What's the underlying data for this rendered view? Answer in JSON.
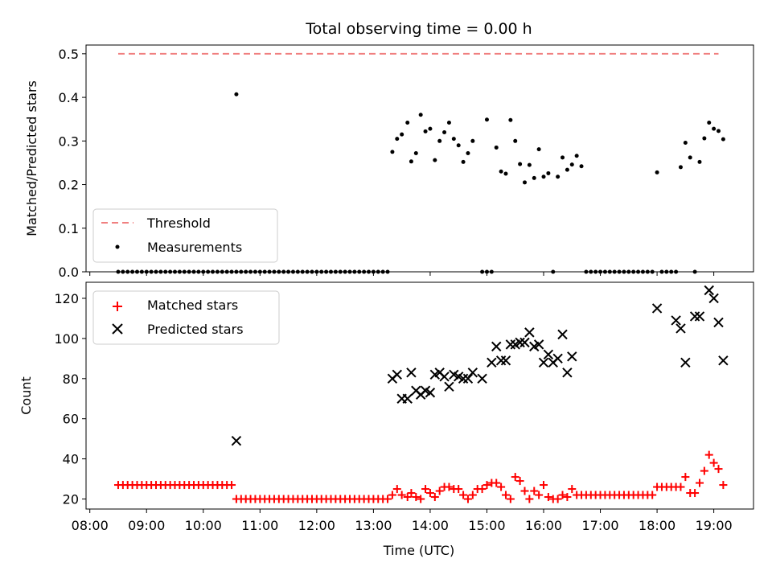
{
  "title": "Total observing time = 0.00 h",
  "xlabel": "Time (UTC)",
  "x_ticks": [
    "08:00",
    "09:00",
    "10:00",
    "11:00",
    "12:00",
    "13:00",
    "14:00",
    "15:00",
    "16:00",
    "17:00",
    "18:00",
    "19:00"
  ],
  "chart_data": [
    {
      "type": "scatter",
      "panel": "top",
      "ylabel": "Matched/Predicted stars",
      "ylim": [
        0,
        0.52
      ],
      "xlim": [
        "07:56",
        "19:42"
      ],
      "yticks": [
        "0.0",
        "0.1",
        "0.2",
        "0.3",
        "0.4",
        "0.5"
      ],
      "legend_position": "lower-left",
      "colors": {
        "threshold": "#f08080",
        "measurements": "#000000"
      },
      "threshold": {
        "name": "Threshold",
        "value": 0.5,
        "x_range": [
          "08:30",
          "19:05"
        ]
      },
      "measurements_name": "Measurements",
      "zeros_x": [
        "08:30",
        "08:35",
        "08:40",
        "08:45",
        "08:50",
        "08:55",
        "09:00",
        "09:05",
        "09:10",
        "09:15",
        "09:20",
        "09:25",
        "09:30",
        "09:35",
        "09:40",
        "09:45",
        "09:50",
        "09:55",
        "10:00",
        "10:05",
        "10:10",
        "10:15",
        "10:20",
        "10:25",
        "10:30",
        "10:35",
        "10:40",
        "10:45",
        "10:50",
        "10:55",
        "11:00",
        "11:05",
        "11:10",
        "11:15",
        "11:20",
        "11:25",
        "11:30",
        "11:35",
        "11:40",
        "11:45",
        "11:50",
        "11:55",
        "12:00",
        "12:05",
        "12:10",
        "12:15",
        "12:20",
        "12:25",
        "12:30",
        "12:35",
        "12:40",
        "12:45",
        "12:50",
        "12:55",
        "13:00",
        "13:05",
        "13:10",
        "13:15",
        "14:55",
        "15:00",
        "15:05",
        "16:10",
        "16:45",
        "16:50",
        "16:55",
        "17:00",
        "17:05",
        "17:10",
        "17:15",
        "17:20",
        "17:25",
        "17:30",
        "17:35",
        "17:40",
        "17:45",
        "17:50",
        "17:55",
        "18:05",
        "18:10",
        "18:15",
        "18:20",
        "18:40"
      ],
      "points": [
        [
          "10:35",
          0.407
        ],
        [
          "13:20",
          0.275
        ],
        [
          "13:25",
          0.305
        ],
        [
          "13:30",
          0.315
        ],
        [
          "13:36",
          0.342
        ],
        [
          "13:40",
          0.253
        ],
        [
          "13:45",
          0.272
        ],
        [
          "13:50",
          0.36
        ],
        [
          "13:55",
          0.322
        ],
        [
          "14:00",
          0.328
        ],
        [
          "14:05",
          0.256
        ],
        [
          "14:10",
          0.3
        ],
        [
          "14:15",
          0.32
        ],
        [
          "14:20",
          0.342
        ],
        [
          "14:25",
          0.305
        ],
        [
          "14:30",
          0.29
        ],
        [
          "14:35",
          0.252
        ],
        [
          "14:40",
          0.272
        ],
        [
          "14:45",
          0.3
        ],
        [
          "15:00",
          0.349
        ],
        [
          "15:10",
          0.285
        ],
        [
          "15:15",
          0.23
        ],
        [
          "15:20",
          0.225
        ],
        [
          "15:25",
          0.348
        ],
        [
          "15:30",
          0.3
        ],
        [
          "15:35",
          0.247
        ],
        [
          "15:40",
          0.205
        ],
        [
          "15:45",
          0.245
        ],
        [
          "15:50",
          0.215
        ],
        [
          "15:55",
          0.281
        ],
        [
          "16:00",
          0.218
        ],
        [
          "16:05",
          0.226
        ],
        [
          "16:15",
          0.218
        ],
        [
          "16:20",
          0.262
        ],
        [
          "16:25",
          0.234
        ],
        [
          "16:30",
          0.246
        ],
        [
          "16:35",
          0.266
        ],
        [
          "16:40",
          0.242
        ],
        [
          "18:00",
          0.228
        ],
        [
          "18:25",
          0.24
        ],
        [
          "18:30",
          0.296
        ],
        [
          "18:35",
          0.262
        ],
        [
          "18:45",
          0.252
        ],
        [
          "18:50",
          0.306
        ],
        [
          "18:55",
          0.342
        ],
        [
          "19:00",
          0.328
        ],
        [
          "19:05",
          0.323
        ],
        [
          "19:10",
          0.304
        ]
      ]
    },
    {
      "type": "scatter",
      "panel": "bottom",
      "ylabel": "Count",
      "ylim": [
        15,
        128
      ],
      "xlim": [
        "07:56",
        "19:42"
      ],
      "yticks": [
        "20",
        "40",
        "60",
        "80",
        "100",
        "120"
      ],
      "legend_position": "upper-left",
      "colors": {
        "matched": "#ff0000",
        "predicted": "#000000"
      },
      "series": [
        {
          "name": "Matched stars",
          "marker": "plus",
          "points": [
            [
              "08:30",
              27
            ],
            [
              "08:35",
              27
            ],
            [
              "08:40",
              27
            ],
            [
              "08:45",
              27
            ],
            [
              "08:50",
              27
            ],
            [
              "08:55",
              27
            ],
            [
              "09:00",
              27
            ],
            [
              "09:05",
              27
            ],
            [
              "09:10",
              27
            ],
            [
              "09:15",
              27
            ],
            [
              "09:20",
              27
            ],
            [
              "09:25",
              27
            ],
            [
              "09:30",
              27
            ],
            [
              "09:35",
              27
            ],
            [
              "09:40",
              27
            ],
            [
              "09:45",
              27
            ],
            [
              "09:50",
              27
            ],
            [
              "09:55",
              27
            ],
            [
              "10:00",
              27
            ],
            [
              "10:05",
              27
            ],
            [
              "10:10",
              27
            ],
            [
              "10:15",
              27
            ],
            [
              "10:20",
              27
            ],
            [
              "10:25",
              27
            ],
            [
              "10:30",
              27
            ],
            [
              "10:35",
              20
            ],
            [
              "10:40",
              20
            ],
            [
              "10:45",
              20
            ],
            [
              "10:50",
              20
            ],
            [
              "10:55",
              20
            ],
            [
              "11:00",
              20
            ],
            [
              "11:05",
              20
            ],
            [
              "11:10",
              20
            ],
            [
              "11:15",
              20
            ],
            [
              "11:20",
              20
            ],
            [
              "11:25",
              20
            ],
            [
              "11:30",
              20
            ],
            [
              "11:35",
              20
            ],
            [
              "11:40",
              20
            ],
            [
              "11:45",
              20
            ],
            [
              "11:50",
              20
            ],
            [
              "11:55",
              20
            ],
            [
              "12:00",
              20
            ],
            [
              "12:05",
              20
            ],
            [
              "12:10",
              20
            ],
            [
              "12:15",
              20
            ],
            [
              "12:20",
              20
            ],
            [
              "12:25",
              20
            ],
            [
              "12:30",
              20
            ],
            [
              "12:35",
              20
            ],
            [
              "12:40",
              20
            ],
            [
              "12:45",
              20
            ],
            [
              "12:50",
              20
            ],
            [
              "12:55",
              20
            ],
            [
              "13:00",
              20
            ],
            [
              "13:05",
              20
            ],
            [
              "13:10",
              20
            ],
            [
              "13:15",
              20
            ],
            [
              "13:20",
              22
            ],
            [
              "13:25",
              25
            ],
            [
              "13:30",
              22
            ],
            [
              "13:36",
              21
            ],
            [
              "13:40",
              23
            ],
            [
              "13:45",
              21
            ],
            [
              "13:50",
              20
            ],
            [
              "13:55",
              25
            ],
            [
              "14:00",
              23
            ],
            [
              "14:05",
              21
            ],
            [
              "14:10",
              24
            ],
            [
              "14:15",
              26
            ],
            [
              "14:20",
              26
            ],
            [
              "14:25",
              25
            ],
            [
              "14:30",
              25
            ],
            [
              "14:35",
              22
            ],
            [
              "14:40",
              20
            ],
            [
              "14:45",
              22
            ],
            [
              "14:50",
              25
            ],
            [
              "14:55",
              25
            ],
            [
              "15:00",
              27
            ],
            [
              "15:05",
              28
            ],
            [
              "15:10",
              28
            ],
            [
              "15:15",
              26
            ],
            [
              "15:20",
              22
            ],
            [
              "15:25",
              20
            ],
            [
              "15:30",
              31
            ],
            [
              "15:35",
              29
            ],
            [
              "15:40",
              24
            ],
            [
              "15:45",
              20
            ],
            [
              "15:50",
              24
            ],
            [
              "15:55",
              22
            ],
            [
              "16:00",
              27
            ],
            [
              "16:05",
              21
            ],
            [
              "16:10",
              20
            ],
            [
              "16:15",
              20
            ],
            [
              "16:20",
              22
            ],
            [
              "16:25",
              21
            ],
            [
              "16:30",
              25
            ],
            [
              "16:35",
              22
            ],
            [
              "16:40",
              22
            ],
            [
              "16:45",
              22
            ],
            [
              "16:50",
              22
            ],
            [
              "16:55",
              22
            ],
            [
              "17:00",
              22
            ],
            [
              "17:05",
              22
            ],
            [
              "17:10",
              22
            ],
            [
              "17:15",
              22
            ],
            [
              "17:20",
              22
            ],
            [
              "17:25",
              22
            ],
            [
              "17:30",
              22
            ],
            [
              "17:35",
              22
            ],
            [
              "17:40",
              22
            ],
            [
              "17:45",
              22
            ],
            [
              "17:50",
              22
            ],
            [
              "17:55",
              22
            ],
            [
              "18:00",
              26
            ],
            [
              "18:05",
              26
            ],
            [
              "18:10",
              26
            ],
            [
              "18:15",
              26
            ],
            [
              "18:20",
              26
            ],
            [
              "18:25",
              26
            ],
            [
              "18:30",
              31
            ],
            [
              "18:35",
              23
            ],
            [
              "18:40",
              23
            ],
            [
              "18:45",
              28
            ],
            [
              "18:50",
              34
            ],
            [
              "18:55",
              42
            ],
            [
              "19:00",
              38
            ],
            [
              "19:05",
              35
            ],
            [
              "19:10",
              27
            ]
          ]
        },
        {
          "name": "Predicted stars",
          "marker": "x",
          "points": [
            [
              "10:35",
              49
            ],
            [
              "13:20",
              80
            ],
            [
              "13:25",
              82
            ],
            [
              "13:30",
              70
            ],
            [
              "13:36",
              70
            ],
            [
              "13:40",
              83
            ],
            [
              "13:45",
              74
            ],
            [
              "13:50",
              72
            ],
            [
              "13:55",
              74
            ],
            [
              "14:00",
              73
            ],
            [
              "14:05",
              82
            ],
            [
              "14:10",
              83
            ],
            [
              "14:15",
              81
            ],
            [
              "14:20",
              76
            ],
            [
              "14:25",
              82
            ],
            [
              "14:30",
              81
            ],
            [
              "14:35",
              80
            ],
            [
              "14:40",
              80
            ],
            [
              "14:45",
              83
            ],
            [
              "14:55",
              80
            ],
            [
              "15:05",
              88
            ],
            [
              "15:10",
              96
            ],
            [
              "15:15",
              89
            ],
            [
              "15:20",
              89
            ],
            [
              "15:25",
              97
            ],
            [
              "15:30",
              97
            ],
            [
              "15:35",
              98
            ],
            [
              "15:40",
              98
            ],
            [
              "15:45",
              103
            ],
            [
              "15:50",
              96
            ],
            [
              "15:55",
              97
            ],
            [
              "16:00",
              88
            ],
            [
              "16:05",
              92
            ],
            [
              "16:10",
              88
            ],
            [
              "16:15",
              90
            ],
            [
              "16:20",
              102
            ],
            [
              "16:25",
              83
            ],
            [
              "16:30",
              91
            ],
            [
              "18:00",
              115
            ],
            [
              "18:20",
              109
            ],
            [
              "18:25",
              105
            ],
            [
              "18:30",
              88
            ],
            [
              "18:40",
              111
            ],
            [
              "18:45",
              111
            ],
            [
              "18:55",
              124
            ],
            [
              "19:00",
              120
            ],
            [
              "19:05",
              108
            ],
            [
              "19:10",
              89
            ]
          ]
        }
      ]
    }
  ]
}
